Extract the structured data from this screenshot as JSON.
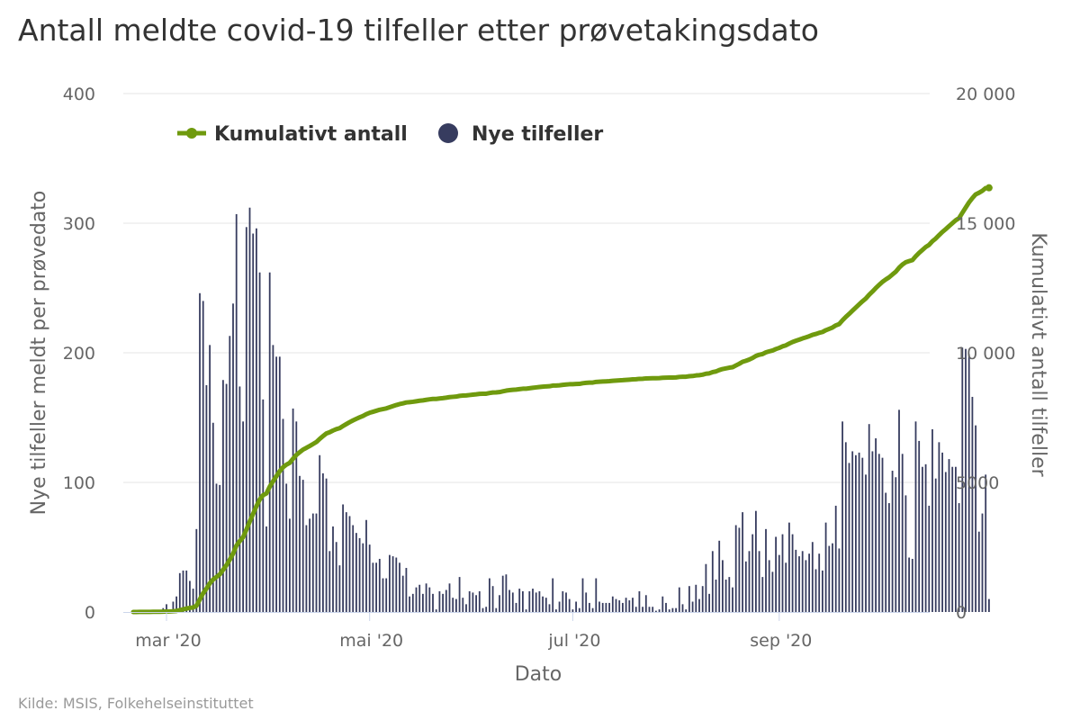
{
  "title": "Antall meldte covid-19 tilfeller etter prøvetakingsdato",
  "source": "Kilde: MSIS, Folkehelseinstituttet",
  "colors": {
    "bars": "#373c5f",
    "line": "#6f9a0e",
    "grid": "#e6e6e6",
    "text": "#666666"
  },
  "chart_data": {
    "type": "bar",
    "title": "Antall meldte covid-19 tilfeller etter prøvetakingsdato",
    "xlabel": "Dato",
    "ylabel": "Nye tilfeller meldt per prøvedato",
    "y2label": "Kumulativt antall tilfeller",
    "ylim": [
      0,
      400
    ],
    "y2lim": [
      0,
      20000
    ],
    "yticks": [
      "0",
      "100",
      "200",
      "300",
      "400"
    ],
    "y2ticks": [
      "0",
      "5000",
      "10 000",
      "15 000",
      "20 000"
    ],
    "xticks": [
      {
        "label": "mar '20",
        "date": "2020-03-01"
      },
      {
        "label": "mai '20",
        "date": "2020-05-01"
      },
      {
        "label": "jul '20",
        "date": "2020-07-01"
      },
      {
        "label": "sep '20",
        "date": "2020-09-01"
      }
    ],
    "legend": {
      "position": "top-left",
      "items": [
        "Kumulativt antall",
        "Nye tilfeller"
      ]
    },
    "grid": true,
    "x_start_date": "2020-02-20",
    "series": [
      {
        "name": "Nye tilfeller",
        "kind": "bar",
        "axis": "left",
        "values": [
          1,
          1,
          1,
          1,
          1,
          1,
          1,
          1,
          1,
          3,
          6,
          2,
          8,
          12,
          30,
          32,
          32,
          24,
          18,
          64,
          246,
          240,
          175,
          206,
          146,
          99,
          98,
          179,
          176,
          213,
          238,
          307,
          174,
          147,
          297,
          312,
          292,
          296,
          262,
          164,
          66,
          262,
          206,
          197,
          197,
          149,
          99,
          72,
          157,
          147,
          105,
          102,
          67,
          72,
          76,
          76,
          121,
          107,
          103,
          47,
          66,
          54,
          36,
          83,
          77,
          74,
          67,
          61,
          57,
          53,
          71,
          52,
          38,
          38,
          41,
          26,
          26,
          44,
          43,
          42,
          38,
          28,
          34,
          12,
          14,
          19,
          21,
          14,
          22,
          19,
          14,
          2,
          16,
          14,
          17,
          22,
          11,
          10,
          27,
          11,
          6,
          16,
          15,
          13,
          16,
          3,
          4,
          26,
          20,
          3,
          13,
          28,
          29,
          17,
          15,
          7,
          18,
          16,
          2,
          16,
          18,
          15,
          16,
          12,
          11,
          6,
          26,
          2,
          8,
          16,
          15,
          10,
          2,
          8,
          3,
          26,
          15,
          7,
          3,
          26,
          8,
          7,
          7,
          7,
          12,
          10,
          9,
          7,
          11,
          9,
          11,
          4,
          16,
          4,
          13,
          4,
          4,
          1,
          2,
          12,
          7,
          2,
          3,
          3,
          19,
          6,
          2,
          20,
          8,
          21,
          10,
          20,
          37,
          14,
          47,
          25,
          55,
          40,
          25,
          27,
          19,
          67,
          65,
          77,
          39,
          47,
          60,
          78,
          47,
          27,
          64,
          40,
          31,
          58,
          44,
          60,
          38,
          69,
          60,
          48,
          43,
          47,
          40,
          45,
          54,
          33,
          45,
          32,
          69,
          51,
          53,
          82,
          49,
          147,
          131,
          115,
          124,
          121,
          123,
          119,
          106,
          145,
          124,
          134,
          122,
          119,
          92,
          84,
          109,
          104,
          156,
          122,
          90,
          42,
          41,
          147,
          132,
          112,
          114,
          82,
          141,
          103,
          131,
          123,
          108,
          118,
          112,
          112,
          84,
          204,
          203,
          199,
          166,
          144,
          62,
          76,
          106,
          10
        ]
      },
      {
        "name": "Kumulativt antall",
        "kind": "line",
        "axis": "right",
        "values": [
          1,
          2,
          3,
          4,
          5,
          6,
          7,
          8,
          9,
          12,
          18,
          20,
          28,
          40,
          70,
          102,
          134,
          158,
          176,
          240,
          486,
          726,
          901,
          1107,
          1253,
          1352,
          1450,
          1629,
          1805,
          2018,
          2256,
          2563,
          2737,
          2884,
          3181,
          3493,
          3785,
          4081,
          4343,
          4507,
          4573,
          4835,
          5041,
          5238,
          5435,
          5584,
          5683,
          5755,
          5912,
          6059,
          6164,
          6266,
          6333,
          6405,
          6481,
          6557,
          6678,
          6785,
          6888,
          6935,
          7001,
          7055,
          7091,
          7174,
          7251,
          7325,
          7392,
          7453,
          7510,
          7563,
          7634,
          7686,
          7724,
          7762,
          7803,
          7829,
          7855,
          7899,
          7942,
          7984,
          8022,
          8050,
          8084,
          8096,
          8110,
          8129,
          8150,
          8164,
          8186,
          8205,
          8219,
          8221,
          8237,
          8251,
          8268,
          8290,
          8301,
          8311,
          8338,
          8349,
          8355,
          8371,
          8386,
          8399,
          8415,
          8418,
          8422,
          8448,
          8468,
          8471,
          8484,
          8512,
          8541,
          8558,
          8573,
          8580,
          8598,
          8614,
          8616,
          8632,
          8650,
          8665,
          8681,
          8693,
          8704,
          8710,
          8736,
          8738,
          8746,
          8762,
          8777,
          8787,
          8789,
          8797,
          8800,
          8826,
          8841,
          8848,
          8851,
          8877,
          8885,
          8892,
          8899,
          8906,
          8918,
          8928,
          8937,
          8944,
          8955,
          8964,
          8975,
          8979,
          8995,
          8999,
          9012,
          9016,
          9020,
          9021,
          9023,
          9035,
          9042,
          9044,
          9047,
          9050,
          9069,
          9075,
          9077,
          9097,
          9105,
          9126,
          9136,
          9156,
          9193,
          9207,
          9254,
          9279,
          9334,
          9374,
          9399,
          9426,
          9445,
          9512,
          9577,
          9654,
          9693,
          9740,
          9800,
          9878,
          9925,
          9952,
          10016,
          10056,
          10087,
          10145,
          10189,
          10249,
          10287,
          10356,
          10416,
          10464,
          10507,
          10554,
          10594,
          10639,
          10693,
          10726,
          10771,
          10803,
          10872,
          10923,
          10976,
          11058,
          11107,
          11254,
          11385,
          11500,
          11624,
          11745,
          11868,
          11987,
          12093,
          12238,
          12362,
          12496,
          12618,
          12737,
          12829,
          12913,
          13022,
          13126,
          13282,
          13404,
          13494,
          13536,
          13577,
          13724,
          13856,
          13968,
          14082,
          14164,
          14305,
          14408,
          14539,
          14662,
          14770,
          14888,
          15000,
          15112,
          15196,
          15400,
          15603,
          15802,
          15968,
          16112,
          16174,
          16250,
          16356,
          16366
        ]
      }
    ]
  }
}
